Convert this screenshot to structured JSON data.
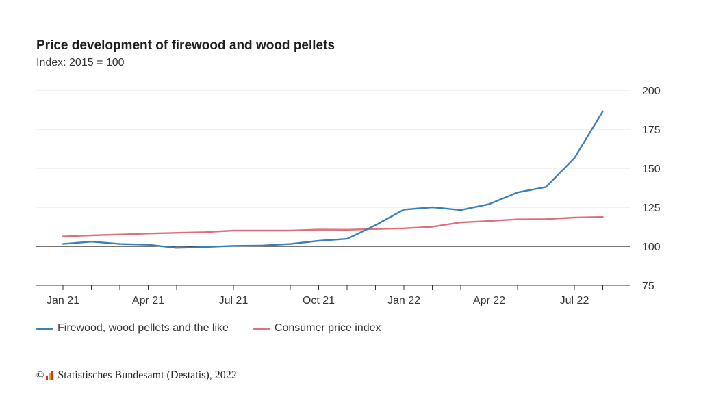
{
  "chart_data": {
    "type": "line",
    "title": "Price development of firewood and wood pellets",
    "subtitle": "Index: 2015 = 100",
    "x_tick_labels": [
      "Jan 21",
      "Apr 21",
      "Jul 21",
      "Oct 21",
      "Jan 22",
      "Apr 22",
      "Jul 22"
    ],
    "x_tick_label_months": [
      0,
      3,
      6,
      9,
      12,
      15,
      18
    ],
    "months": [
      "Jan 21",
      "Feb 21",
      "Mar 21",
      "Apr 21",
      "May 21",
      "Jun 21",
      "Jul 21",
      "Aug 21",
      "Sep 21",
      "Oct 21",
      "Nov 21",
      "Dec 21",
      "Jan 22",
      "Feb 22",
      "Mar 22",
      "Apr 22",
      "May 22",
      "Jun 22",
      "Jul 22",
      "Aug 22"
    ],
    "ylim": [
      75,
      200
    ],
    "y_ticks": [
      75,
      100,
      125,
      150,
      175,
      200
    ],
    "y_tick_labels": [
      "75",
      "100",
      "125",
      "150",
      "175",
      "200"
    ],
    "reference_line": 100,
    "series": [
      {
        "name": "Firewood, wood pellets and the like",
        "color": "#3a7fb8",
        "values": [
          101.5,
          103,
          101.5,
          101,
          99,
          99.5,
          100.3,
          100.5,
          101.5,
          103.5,
          104.8,
          113.5,
          123.5,
          125,
          123.2,
          127,
          134.5,
          138,
          156.5,
          186.5
        ]
      },
      {
        "name": "Consumer price index",
        "color": "#e06f7a",
        "values": [
          106.3,
          107,
          107.6,
          108.2,
          108.7,
          109.1,
          110.1,
          110.1,
          110.1,
          110.7,
          110.6,
          111.1,
          111.5,
          112.5,
          115.3,
          116.2,
          117.3,
          117.4,
          118.4,
          118.8
        ]
      }
    ],
    "legend_position": "bottom-left"
  },
  "source": {
    "copyright_symbol": "©",
    "text": "Statistisches Bundesamt (Destatis), 2022",
    "logo_colors": [
      "#e8262b",
      "#f3a712",
      "#e8262b"
    ]
  }
}
